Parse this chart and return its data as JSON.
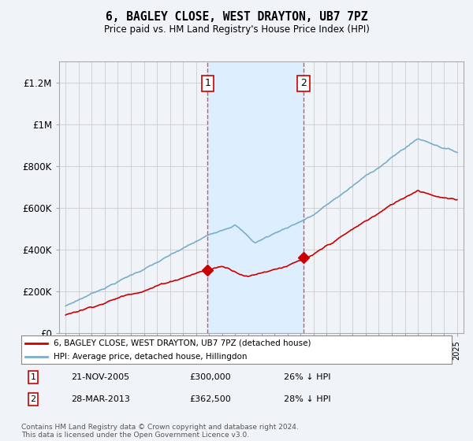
{
  "title": "6, BAGLEY CLOSE, WEST DRAYTON, UB7 7PZ",
  "subtitle": "Price paid vs. HM Land Registry's House Price Index (HPI)",
  "transaction1": {
    "label": "1",
    "date": "21-NOV-2005",
    "price": 300000,
    "pct": "26% ↓ HPI",
    "year": 2005.89
  },
  "transaction2": {
    "label": "2",
    "date": "28-MAR-2013",
    "price": 362500,
    "pct": "28% ↓ HPI",
    "year": 2013.23
  },
  "legend_red": "6, BAGLEY CLOSE, WEST DRAYTON, UB7 7PZ (detached house)",
  "legend_blue": "HPI: Average price, detached house, Hillingdon",
  "footnote": "Contains HM Land Registry data © Crown copyright and database right 2024.\nThis data is licensed under the Open Government Licence v3.0.",
  "ylim": [
    0,
    1300000
  ],
  "yticks": [
    0,
    200000,
    400000,
    600000,
    800000,
    1000000,
    1200000
  ],
  "ytick_labels": [
    "£0",
    "£200K",
    "£400K",
    "£600K",
    "£800K",
    "£1M",
    "£1.2M"
  ],
  "shade_color": "#ddeeff",
  "red_color": "#cc0000",
  "blue_color": "#7aadcc",
  "background_color": "#f0f4f8",
  "grid_color": "#cccccc"
}
